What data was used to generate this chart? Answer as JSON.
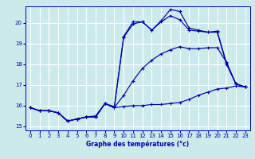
{
  "xlabel": "Graphe des températures (°c)",
  "xlim": [
    -0.5,
    23.5
  ],
  "ylim": [
    14.8,
    20.8
  ],
  "yticks": [
    15,
    16,
    17,
    18,
    19,
    20
  ],
  "xticks": [
    0,
    1,
    2,
    3,
    4,
    5,
    6,
    7,
    8,
    9,
    10,
    11,
    12,
    13,
    14,
    15,
    16,
    17,
    18,
    19,
    20,
    21,
    22,
    23
  ],
  "bg_color": "#cceaea",
  "grid_color": "#ffffff",
  "line_color": "#0000aa",
  "line1_x": [
    0,
    1,
    2,
    3,
    4,
    5,
    6,
    7,
    8,
    9,
    10,
    11,
    12,
    13,
    14,
    15,
    16,
    17,
    18,
    19,
    20,
    21,
    22,
    23
  ],
  "line1_y": [
    15.9,
    15.75,
    15.75,
    15.65,
    15.25,
    15.35,
    15.45,
    15.45,
    16.1,
    15.9,
    15.95,
    16.0,
    16.0,
    16.05,
    16.05,
    16.1,
    16.15,
    16.3,
    16.5,
    16.65,
    16.8,
    16.85,
    16.95,
    16.9
  ],
  "line2_x": [
    0,
    1,
    2,
    3,
    4,
    5,
    6,
    7,
    8,
    9,
    10,
    11,
    12,
    13,
    14,
    15,
    16,
    17,
    18,
    19,
    20,
    21,
    22,
    23
  ],
  "line2_y": [
    15.9,
    15.75,
    15.75,
    15.65,
    15.25,
    15.35,
    15.45,
    15.45,
    16.1,
    15.9,
    16.5,
    17.2,
    17.8,
    18.2,
    18.5,
    18.7,
    18.85,
    18.75,
    18.75,
    18.8,
    18.8,
    18.1,
    17.05,
    16.9
  ],
  "line3_x": [
    0,
    1,
    2,
    3,
    4,
    5,
    6,
    7,
    8,
    9,
    10,
    11,
    12,
    13,
    14,
    15,
    16,
    17,
    18,
    19,
    20,
    21,
    22,
    23
  ],
  "line3_y": [
    15.9,
    15.75,
    15.75,
    15.65,
    15.25,
    15.35,
    15.45,
    15.45,
    16.1,
    15.9,
    19.3,
    19.95,
    20.05,
    19.65,
    20.05,
    20.35,
    20.15,
    19.65,
    19.6,
    19.55,
    19.6,
    18.05,
    17.05,
    16.9
  ],
  "line4_x": [
    0,
    1,
    2,
    3,
    4,
    5,
    6,
    7,
    8,
    9,
    10,
    11,
    12,
    13,
    14,
    15,
    16,
    17,
    18,
    19,
    20,
    21,
    22,
    23
  ],
  "line4_y": [
    15.9,
    15.75,
    15.75,
    15.65,
    15.25,
    15.35,
    15.45,
    15.5,
    16.1,
    15.95,
    19.35,
    20.05,
    20.05,
    19.65,
    20.1,
    20.65,
    20.55,
    19.75,
    19.65,
    19.55,
    19.55,
    18.0,
    17.05,
    16.9
  ]
}
